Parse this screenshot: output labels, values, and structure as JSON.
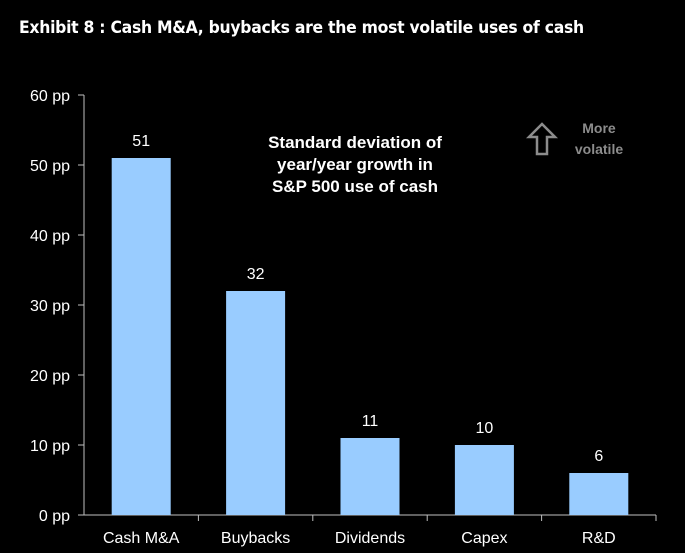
{
  "title": "Exhibit 8 : Cash M&A, buybacks are the most volatile uses of cash",
  "annotation": {
    "lines": [
      "Standard deviation of",
      "year/year growth in",
      "S&P 500 use of cash"
    ]
  },
  "volatility_note": {
    "icon": "up-arrow-icon",
    "lines": [
      "More",
      "volatile"
    ]
  },
  "colors": {
    "background": "#000000",
    "bar_fill": "#99ccff",
    "text": "#ffffff",
    "note_text": "#8c8c8c",
    "axis": "#bfbfbf"
  },
  "chart_data": {
    "type": "bar",
    "title": "",
    "xlabel": "",
    "ylabel": "",
    "categories": [
      "Cash M&A",
      "Buybacks",
      "Dividends",
      "Capex",
      "R&D"
    ],
    "values": [
      51,
      32,
      11,
      10,
      6
    ],
    "data_labels": [
      "51",
      "32",
      "11",
      "10",
      "6"
    ],
    "ylim": [
      0,
      60
    ],
    "yticks": [
      0,
      10,
      20,
      30,
      40,
      50,
      60
    ],
    "ytick_labels": [
      "0 pp",
      "10 pp",
      "20 pp",
      "30 pp",
      "40 pp",
      "50 pp",
      "60 pp"
    ],
    "grid": false,
    "legend": "none"
  }
}
